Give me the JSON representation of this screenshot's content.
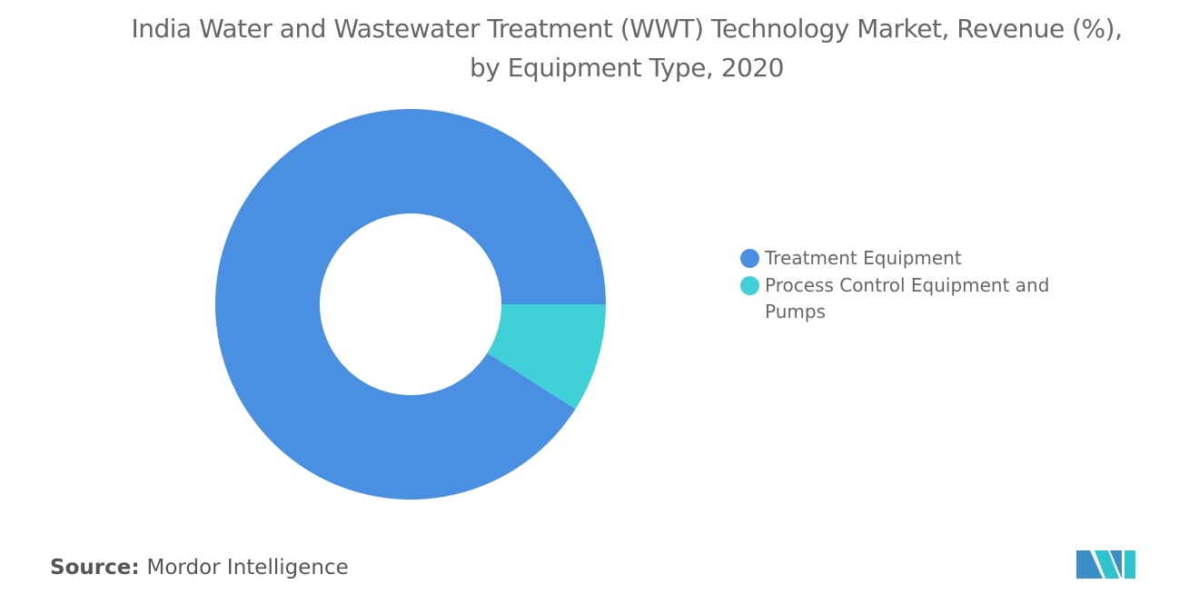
{
  "chart_data": {
    "type": "donut",
    "title": "India Water and Wastewater Treatment (WWT) Technology Market, Revenue (%), by Equipment Type, 2020",
    "categories": [
      "Treatment Equipment",
      "Process Control Equipment and Pumps"
    ],
    "values": [
      91,
      9
    ],
    "colors": [
      "#4a90e2",
      "#40d0d8"
    ],
    "legend": "right",
    "source_label": "Source:",
    "source": "Mordor Intelligence"
  }
}
